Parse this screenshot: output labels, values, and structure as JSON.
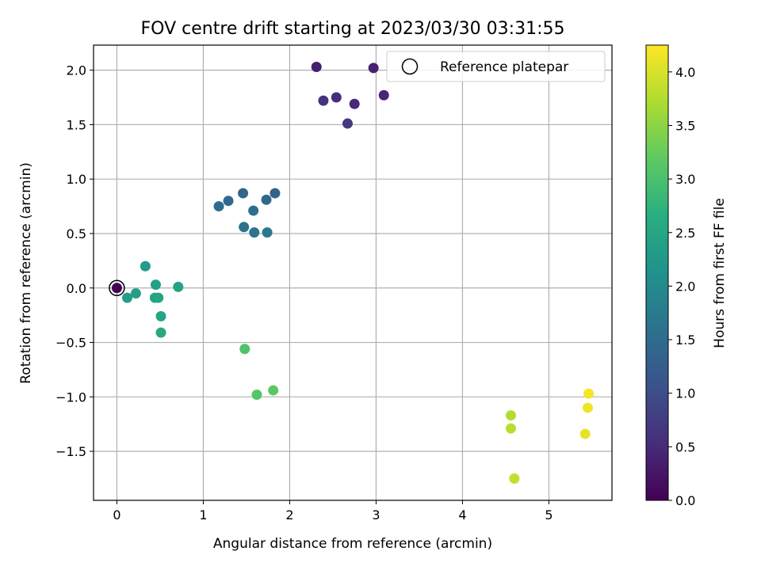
{
  "chart_data": {
    "type": "scatter",
    "title": "FOV centre drift starting at 2023/03/30 03:31:55",
    "xlabel": "Angular distance from reference (arcmin)",
    "ylabel": "Rotation from reference (arcmin)",
    "xlim": [
      -0.27,
      5.73
    ],
    "ylim": [
      -1.95,
      2.23
    ],
    "xticks": [
      0,
      1,
      2,
      3,
      4,
      5
    ],
    "xtick_labels": [
      "0",
      "1",
      "2",
      "3",
      "4",
      "5"
    ],
    "yticks": [
      -1.5,
      -1.0,
      -0.5,
      0.0,
      0.5,
      1.0,
      1.5,
      2.0
    ],
    "ytick_labels": [
      "−1.5",
      "−1.0",
      "−0.5",
      "0.0",
      "0.5",
      "1.0",
      "1.5",
      "2.0"
    ],
    "grid": true,
    "colorbar": {
      "label": "Hours from first FF file",
      "colormap": "viridis",
      "range": [
        0.0,
        4.25
      ],
      "ticks": [
        0.0,
        0.5,
        1.0,
        1.5,
        2.0,
        2.5,
        3.0,
        3.5,
        4.0
      ],
      "tick_labels": [
        "0.0",
        "0.5",
        "1.0",
        "1.5",
        "2.0",
        "2.5",
        "3.0",
        "3.5",
        "4.0"
      ]
    },
    "legend": {
      "placement": "top-right",
      "entries": [
        {
          "label": "Reference platepar",
          "marker": "open-circle"
        }
      ]
    },
    "reference_point": {
      "x": 0.0,
      "y": 0.0,
      "hours": 0.0
    },
    "points": [
      {
        "x": 2.31,
        "y": 2.03,
        "hours": 0.35
      },
      {
        "x": 2.97,
        "y": 2.02,
        "hours": 0.4
      },
      {
        "x": 2.39,
        "y": 1.72,
        "hours": 0.6
      },
      {
        "x": 2.54,
        "y": 1.75,
        "hours": 0.55
      },
      {
        "x": 2.75,
        "y": 1.69,
        "hours": 0.5
      },
      {
        "x": 3.09,
        "y": 1.77,
        "hours": 0.45
      },
      {
        "x": 2.67,
        "y": 1.51,
        "hours": 0.7
      },
      {
        "x": 1.18,
        "y": 0.75,
        "hours": 1.5
      },
      {
        "x": 1.29,
        "y": 0.8,
        "hours": 1.45
      },
      {
        "x": 1.46,
        "y": 0.87,
        "hours": 1.4
      },
      {
        "x": 1.83,
        "y": 0.87,
        "hours": 1.35
      },
      {
        "x": 1.73,
        "y": 0.81,
        "hours": 1.45
      },
      {
        "x": 1.58,
        "y": 0.71,
        "hours": 1.55
      },
      {
        "x": 1.47,
        "y": 0.56,
        "hours": 1.6
      },
      {
        "x": 1.59,
        "y": 0.51,
        "hours": 1.65
      },
      {
        "x": 1.74,
        "y": 0.51,
        "hours": 1.7
      },
      {
        "x": 0.33,
        "y": 0.2,
        "hours": 2.3
      },
      {
        "x": 0.45,
        "y": 0.03,
        "hours": 2.4
      },
      {
        "x": 0.71,
        "y": 0.01,
        "hours": 2.45
      },
      {
        "x": 0.12,
        "y": -0.09,
        "hours": 2.35
      },
      {
        "x": 0.22,
        "y": -0.05,
        "hours": 2.4
      },
      {
        "x": 0.44,
        "y": -0.09,
        "hours": 2.45
      },
      {
        "x": 0.48,
        "y": -0.09,
        "hours": 2.5
      },
      {
        "x": 0.51,
        "y": -0.26,
        "hours": 2.5
      },
      {
        "x": 0.51,
        "y": -0.41,
        "hours": 2.55
      },
      {
        "x": 1.48,
        "y": -0.56,
        "hours": 3.05
      },
      {
        "x": 1.62,
        "y": -0.98,
        "hours": 3.1
      },
      {
        "x": 1.81,
        "y": -0.94,
        "hours": 3.15
      },
      {
        "x": 4.56,
        "y": -1.17,
        "hours": 3.75
      },
      {
        "x": 4.56,
        "y": -1.29,
        "hours": 3.8
      },
      {
        "x": 4.6,
        "y": -1.75,
        "hours": 3.85
      },
      {
        "x": 5.46,
        "y": -0.97,
        "hours": 4.2
      },
      {
        "x": 5.45,
        "y": -1.1,
        "hours": 4.15
      },
      {
        "x": 5.42,
        "y": -1.34,
        "hours": 4.1
      }
    ]
  }
}
